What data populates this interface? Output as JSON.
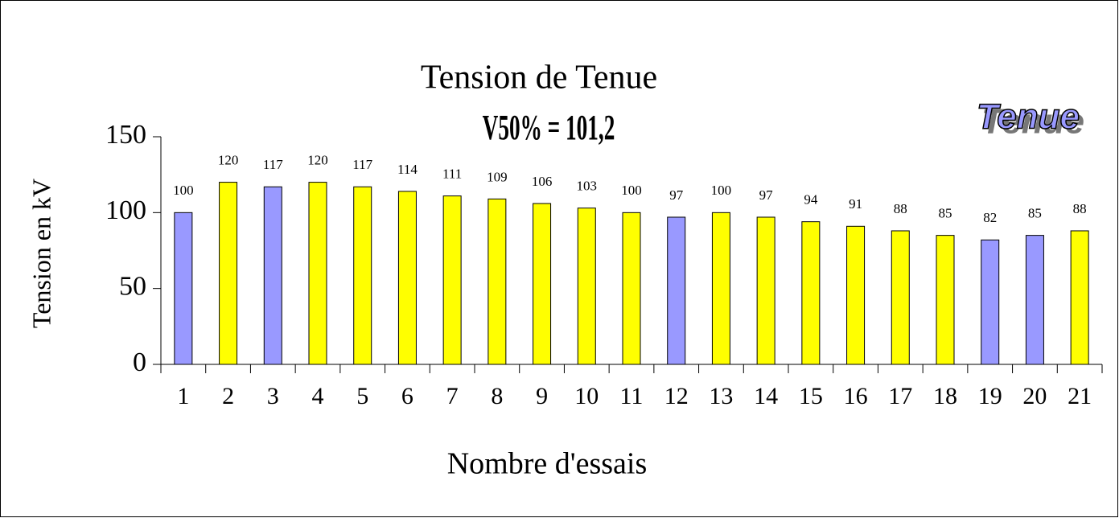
{
  "chart_data": {
    "type": "bar",
    "title": "Tension de Tenue",
    "annotations": [
      "V50% = 101,2",
      "Tenue"
    ],
    "xlabel": "Nombre d'essais",
    "ylabel": "Tension en kV",
    "categories": [
      "1",
      "2",
      "3",
      "4",
      "5",
      "6",
      "7",
      "8",
      "9",
      "10",
      "11",
      "12",
      "13",
      "14",
      "15",
      "16",
      "17",
      "18",
      "19",
      "20",
      "21"
    ],
    "values": [
      100,
      120,
      117,
      120,
      117,
      114,
      111,
      109,
      106,
      103,
      100,
      97,
      100,
      97,
      94,
      91,
      88,
      85,
      82,
      85,
      88
    ],
    "colors": [
      "#9999ff",
      "#ffff00",
      "#9999ff",
      "#ffff00",
      "#ffff00",
      "#ffff00",
      "#ffff00",
      "#ffff00",
      "#ffff00",
      "#ffff00",
      "#ffff00",
      "#9999ff",
      "#ffff00",
      "#ffff00",
      "#ffff00",
      "#ffff00",
      "#ffff00",
      "#ffff00",
      "#9999ff",
      "#9999ff",
      "#ffff00"
    ],
    "ylim": [
      0,
      150
    ],
    "yticks": [
      0,
      50,
      100,
      150
    ],
    "grid": false
  }
}
